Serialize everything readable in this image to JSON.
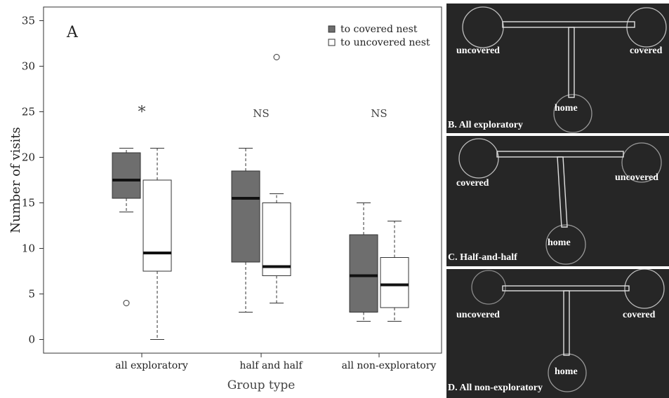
{
  "chart_data": {
    "type": "box",
    "panel_letter": "A",
    "xlabel": "Group type",
    "ylabel": "Number of visits",
    "yticks": [
      0,
      5,
      10,
      15,
      20,
      25,
      30,
      35
    ],
    "ylim": [
      -1.5,
      36.5
    ],
    "categories": [
      "all exploratory",
      "half and half",
      "all non-exploratory"
    ],
    "significance": [
      "*",
      "NS",
      "NS"
    ],
    "legend_position": "top-right",
    "series": [
      {
        "name": "to covered nest",
        "color": "#6e6e6e",
        "boxes": [
          {
            "whisker_low": 14,
            "q1": 15.5,
            "median": 17.5,
            "q3": 20.5,
            "whisker_high": 21,
            "outliers": [
              4
            ]
          },
          {
            "whisker_low": 3,
            "q1": 8.5,
            "median": 15.5,
            "q3": 18.5,
            "whisker_high": 21,
            "outliers": []
          },
          {
            "whisker_low": 2,
            "q1": 3,
            "median": 7,
            "q3": 11.5,
            "whisker_high": 15,
            "outliers": []
          }
        ]
      },
      {
        "name": "to uncovered nest",
        "color": "#ffffff",
        "boxes": [
          {
            "whisker_low": 0,
            "q1": 7.5,
            "median": 9.5,
            "q3": 17.5,
            "whisker_high": 21,
            "outliers": []
          },
          {
            "whisker_low": 4,
            "q1": 7,
            "median": 8,
            "q3": 15,
            "whisker_high": 16,
            "outliers": [
              31
            ]
          },
          {
            "whisker_low": 2,
            "q1": 3.5,
            "median": 6,
            "q3": 9,
            "whisker_high": 13,
            "outliers": []
          }
        ]
      }
    ]
  },
  "panels": [
    {
      "caption": "B. All exploratory",
      "labels": {
        "left": "uncovered",
        "right": "covered",
        "bottom": "home"
      }
    },
    {
      "caption": "C. Half-and-half",
      "labels": {
        "left": "covered",
        "right": "uncovered",
        "bottom": "home"
      }
    },
    {
      "caption": "D. All non-exploratory",
      "labels": {
        "left": "uncovered",
        "right": "covered",
        "bottom": "home"
      }
    }
  ]
}
